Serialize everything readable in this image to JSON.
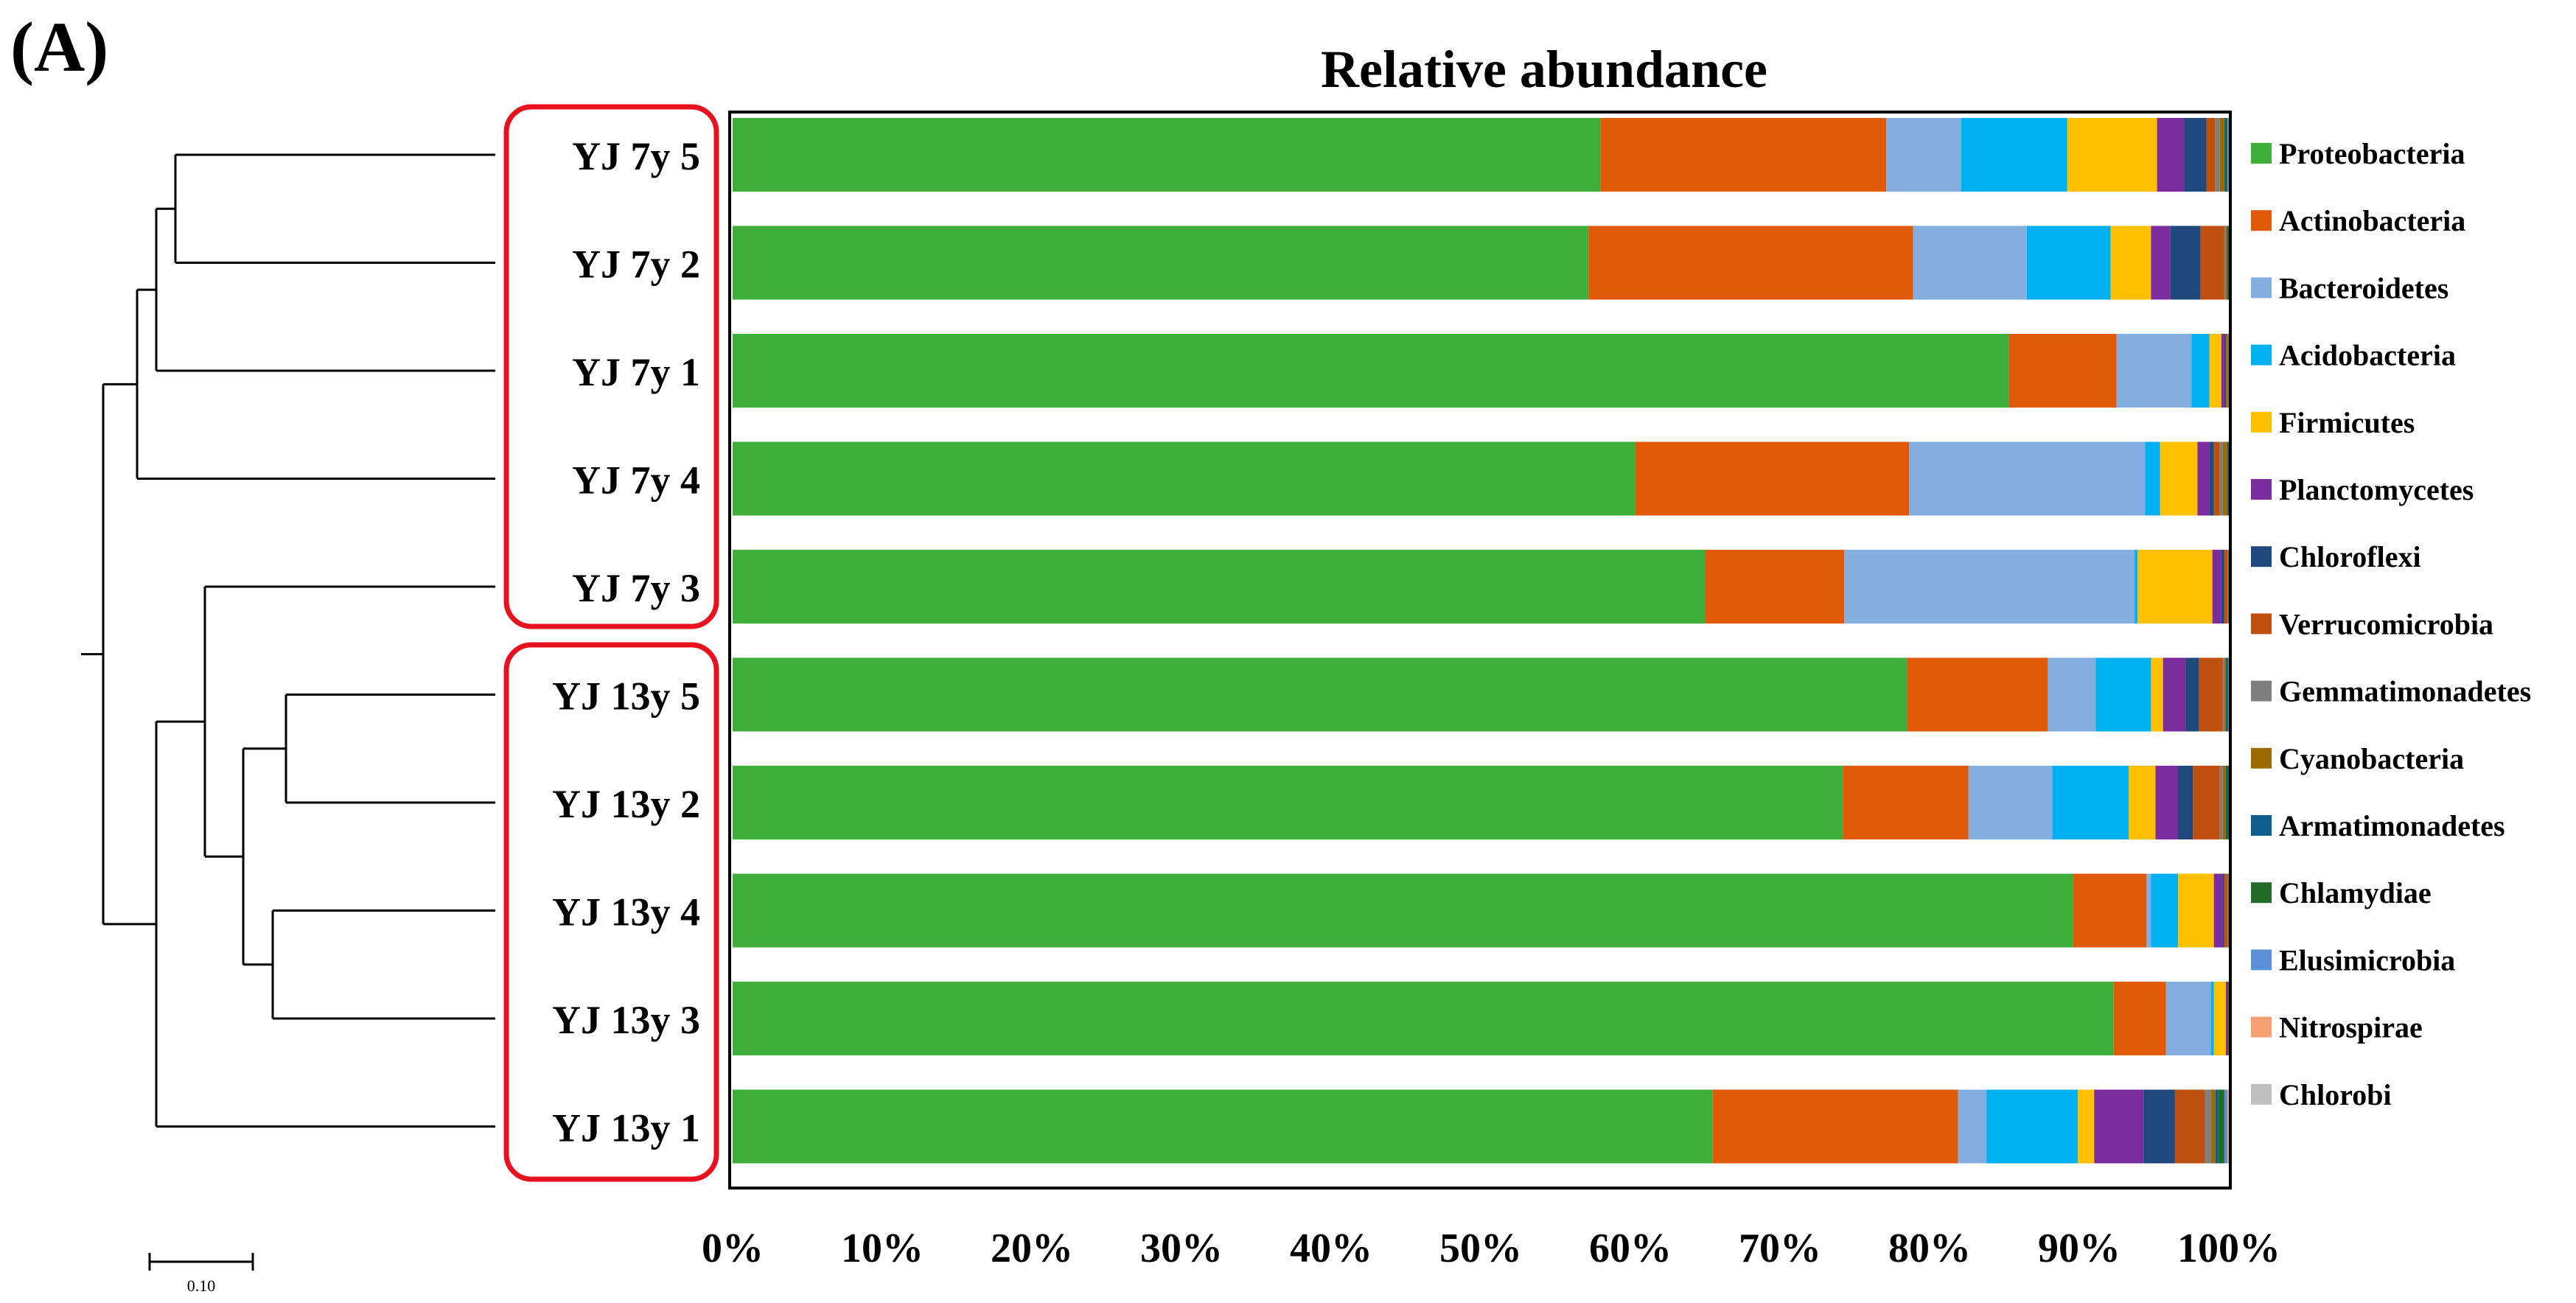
{
  "panel_label": "(A)",
  "chart_data": {
    "type": "bar",
    "orientation": "horizontal",
    "stacked": true,
    "normalized": true,
    "title": "Relative abundance",
    "xlabel": "",
    "ylabel": "",
    "xlim": [
      0,
      100
    ],
    "x_ticks": [
      "0%",
      "10%",
      "20%",
      "30%",
      "40%",
      "50%",
      "60%",
      "70%",
      "80%",
      "90%",
      "100%"
    ],
    "categories": [
      "YJ 7y 5",
      "YJ 7y 2",
      "YJ 7y 1",
      "YJ 7y 4",
      "YJ 7y 3",
      "YJ 13y 5",
      "YJ 13y 2",
      "YJ 13y 4",
      "YJ 13y 3",
      "YJ 13y 1"
    ],
    "groups": [
      {
        "name": "7y",
        "categories": [
          "YJ 7y 5",
          "YJ 7y 2",
          "YJ 7y 1",
          "YJ 7y 4",
          "YJ 7y 3"
        ]
      },
      {
        "name": "13y",
        "categories": [
          "YJ 13y 5",
          "YJ 13y 2",
          "YJ 13y 4",
          "YJ 13y 3",
          "YJ 13y 1"
        ]
      }
    ],
    "legend_position": "right",
    "series": [
      {
        "name": "Proteobacteria",
        "color": "#3FAE3A",
        "values": [
          58.0,
          57.2,
          85.3,
          60.4,
          65.0,
          78.5,
          74.2,
          89.6,
          92.3,
          65.5
        ]
      },
      {
        "name": "Actinobacteria",
        "color": "#E05A0A",
        "values": [
          19.1,
          21.7,
          7.2,
          18.3,
          9.3,
          9.4,
          8.4,
          4.9,
          3.5,
          16.4
        ]
      },
      {
        "name": "Bacteroidetes",
        "color": "#85AEE0",
        "values": [
          5.0,
          7.6,
          5.0,
          15.8,
          19.4,
          3.2,
          5.6,
          0.3,
          3.0,
          1.9
        ]
      },
      {
        "name": "Acidobacteria",
        "color": "#00B0F0",
        "values": [
          7.1,
          5.6,
          1.2,
          1.0,
          0.2,
          3.7,
          5.1,
          1.8,
          0.2,
          6.1
        ]
      },
      {
        "name": "Firmicutes",
        "color": "#FFC000",
        "values": [
          6.0,
          2.7,
          0.8,
          2.5,
          5.0,
          0.8,
          1.8,
          2.4,
          0.8,
          1.1
        ]
      },
      {
        "name": "Planctomycetes",
        "color": "#7B2C9E",
        "values": [
          1.8,
          1.3,
          0.2,
          0.8,
          0.6,
          1.5,
          1.5,
          0.6,
          0.1,
          3.3
        ]
      },
      {
        "name": "Chloroflexi",
        "color": "#1F497D",
        "values": [
          1.5,
          2.0,
          0.1,
          0.3,
          0.2,
          0.9,
          1.0,
          0.1,
          0.05,
          2.1
        ]
      },
      {
        "name": "Verrucomicrobia",
        "color": "#C0500F",
        "values": [
          0.6,
          1.6,
          0.1,
          0.4,
          0.2,
          1.6,
          1.8,
          0.2,
          0.05,
          2.0
        ]
      },
      {
        "name": "Gemmatimonadetes",
        "color": "#7F7F7F",
        "values": [
          0.3,
          0.1,
          0.05,
          0.2,
          0.05,
          0.1,
          0.2,
          0.05,
          0.0,
          0.4
        ]
      },
      {
        "name": "Cyanobacteria",
        "color": "#9C6A00",
        "values": [
          0.3,
          0.1,
          0.05,
          0.3,
          0.05,
          0.1,
          0.2,
          0.05,
          0.0,
          0.3
        ]
      },
      {
        "name": "Armatimonadetes",
        "color": "#0E5E8E",
        "values": [
          0.1,
          0.05,
          0.0,
          0.1,
          0.0,
          0.1,
          0.1,
          0.0,
          0.0,
          0.2
        ]
      },
      {
        "name": "Chlamydiae",
        "color": "#226B2B",
        "values": [
          0.1,
          0.05,
          0.0,
          0.0,
          0.0,
          0.05,
          0.1,
          0.0,
          0.0,
          0.4
        ]
      },
      {
        "name": "Elusimicrobia",
        "color": "#5B8FD6",
        "values": [
          0.1,
          0.0,
          0.0,
          0.0,
          0.0,
          0.05,
          0.0,
          0.0,
          0.0,
          0.2
        ]
      },
      {
        "name": "Nitrospirae",
        "color": "#F4A070",
        "values": [
          0.0,
          0.0,
          0.0,
          0.0,
          0.0,
          0.0,
          0.0,
          0.0,
          0.0,
          0.1
        ]
      },
      {
        "name": "Chlorobi",
        "color": "#BFBFBF",
        "values": [
          0.0,
          0.0,
          0.0,
          0.0,
          0.0,
          0.0,
          0.0,
          0.0,
          0.0,
          0.0
        ]
      }
    ],
    "dendrogram": {
      "scale_bar_label": "0.10",
      "leaf_order": [
        "YJ 7y 5",
        "YJ 7y 2",
        "YJ 7y 1",
        "YJ 7y 4",
        "YJ 7y 3",
        "YJ 13y 5",
        "YJ 13y 2",
        "YJ 13y 4",
        "YJ 13y 3",
        "YJ 13y 1"
      ]
    }
  }
}
